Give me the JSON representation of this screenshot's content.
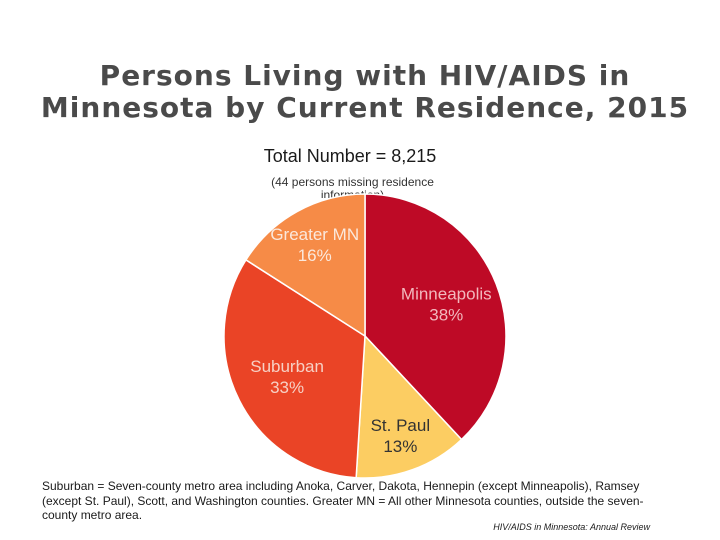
{
  "title_lines": [
    "Persons Living with HIV/AIDS in",
    "Minnesota by Current Residence, 2015"
  ],
  "total_text": "Total Number = 8,215",
  "missing_note": "(44 persons missing residence information)",
  "footnote": "Suburban = Seven-county metro area including Anoka, Carver, Dakota, Hennepin (except Minneapolis), Ramsey (except St. Paul), Scott, and Washington counties.  Greater MN = All other Minnesota counties, outside the seven-county metro area.",
  "source": "HIV/AIDS in Minnesota: Annual Review",
  "chart_data": {
    "type": "pie",
    "title": "Persons Living with HIV/AIDS in Minnesota by Current Residence, 2015",
    "start_angle_deg": 0,
    "slices": [
      {
        "label": "Minneapolis",
        "value": 38,
        "value_label": "38%",
        "color": "#be0a26",
        "label_color": "#f2b8bd"
      },
      {
        "label": "St. Paul",
        "value": 13,
        "value_label": "13%",
        "color": "#fccd62",
        "label_color": "#333333"
      },
      {
        "label": "Suburban",
        "value": 33,
        "value_label": "33%",
        "color": "#ea4426",
        "label_color": "#f7d0c4"
      },
      {
        "label": "Greater MN",
        "value": 16,
        "value_label": "16%",
        "color": "#f68b47",
        "label_color": "#fbe8dc"
      }
    ]
  }
}
